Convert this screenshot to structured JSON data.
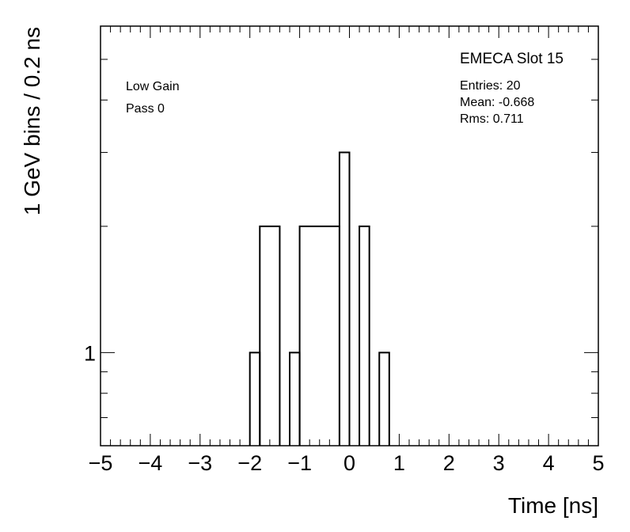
{
  "chart_data": {
    "type": "bar",
    "subtype": "step-histogram",
    "xlabel": "Time [ns]",
    "ylabel": "1 GeV bins / 0.2 ns",
    "xlim": [
      -5,
      5
    ],
    "ylim": [
      0.6,
      6
    ],
    "yscale": "log",
    "bin_width": 0.2,
    "bins": [
      {
        "x0": -2.0,
        "x1": -1.8,
        "value": 1
      },
      {
        "x0": -1.8,
        "x1": -1.4,
        "value": 2
      },
      {
        "x0": -1.2,
        "x1": -1.0,
        "value": 1
      },
      {
        "x0": -1.0,
        "x1": -0.2,
        "value": 2
      },
      {
        "x0": -0.2,
        "x1": 0.0,
        "value": 3
      },
      {
        "x0": 0.2,
        "x1": 0.4,
        "value": 2
      },
      {
        "x0": 0.6,
        "x1": 0.8,
        "value": 1
      }
    ],
    "x_ticks": [
      "-5",
      "-4",
      "-3",
      "-2",
      "-1",
      "0",
      "1",
      "2",
      "3",
      "4",
      "5"
    ],
    "x_tick_values": [
      -5,
      -4,
      -3,
      -2,
      -1,
      0,
      1,
      2,
      3,
      4,
      5
    ],
    "y_ticks": [
      "1"
    ],
    "y_tick_values": [
      1
    ],
    "grid": false,
    "legend": "none",
    "line_color": "#000000",
    "stats": {
      "title": "EMECA Slot 15",
      "entries": "Entries: 20",
      "mean": "Mean: -0.668",
      "rms": "Rms: 0.711"
    },
    "annotations": [
      "Low Gain",
      "Pass 0"
    ]
  }
}
